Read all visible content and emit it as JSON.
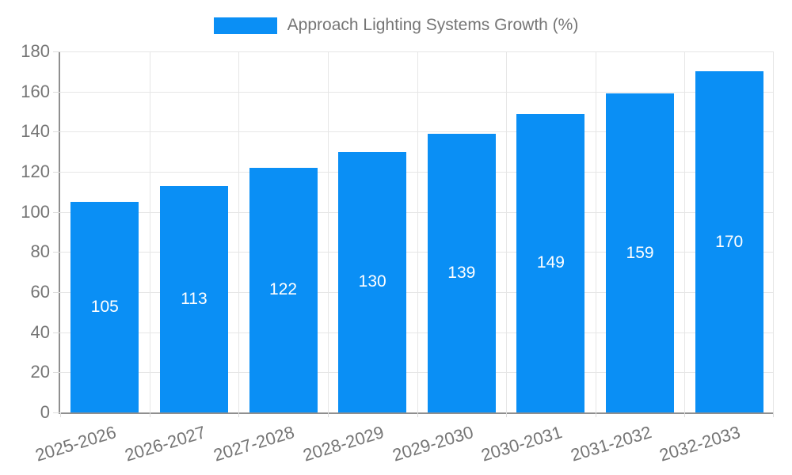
{
  "legend": {
    "label": "Approach Lighting Systems Growth (%)"
  },
  "chart_data": {
    "type": "bar",
    "title": "Approach Lighting Systems Growth (%)",
    "categories": [
      "2025-2026",
      "2026-2027",
      "2027-2028",
      "2028-2029",
      "2029-2030",
      "2030-2031",
      "2031-2032",
      "2032-2033"
    ],
    "values": [
      105,
      113,
      122,
      130,
      139,
      149,
      159,
      170
    ],
    "series": [
      {
        "name": "Approach Lighting Systems Growth (%)",
        "values": [
          105,
          113,
          122,
          130,
          139,
          149,
          159,
          170
        ]
      }
    ],
    "bar_value_labels": [
      "105",
      "113",
      "122",
      "130",
      "139",
      "149",
      "159",
      "170"
    ],
    "xlabel": "",
    "ylabel": "",
    "ylim": [
      0,
      180
    ],
    "yticks": [
      0,
      20,
      40,
      60,
      80,
      100,
      120,
      140,
      160,
      180
    ],
    "grid": true,
    "legend_position": "top",
    "colors": {
      "bar": "#0a8ff5",
      "bar_label": "#ffffff",
      "axis_text": "#757575",
      "grid_line": "#e6e6e6",
      "tick_line": "#dddddd",
      "axis_line": "#8f8f8f"
    }
  }
}
